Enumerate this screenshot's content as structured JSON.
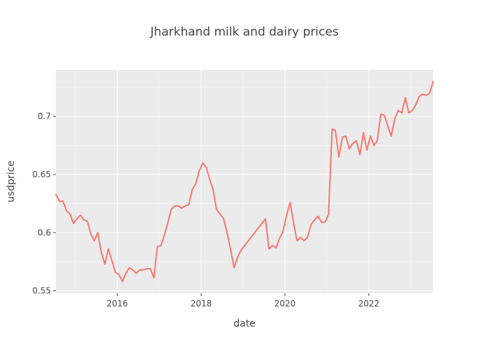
{
  "chart_data": {
    "type": "line",
    "title": "Jharkhand milk and dairy prices",
    "xlabel": "date",
    "ylabel": "usdprice",
    "xlim": [
      "2014-07-15",
      "2023-07-15"
    ],
    "ylim": [
      0.548,
      0.74
    ],
    "grid": true,
    "x_ticks": [
      "2016",
      "2018",
      "2020",
      "2022"
    ],
    "y_ticks": [
      0.55,
      0.6,
      0.65,
      0.7
    ],
    "y_tick_labels": [
      "0.55",
      "0.6",
      "0.65",
      "0.7"
    ],
    "series": [
      {
        "color": "#f8766d",
        "x": [
          "2014-07-15",
          "2014-08-15",
          "2014-09-15",
          "2014-10-15",
          "2014-11-15",
          "2014-12-15",
          "2015-01-15",
          "2015-02-15",
          "2015-03-15",
          "2015-04-15",
          "2015-05-15",
          "2015-06-15",
          "2015-07-15",
          "2015-08-15",
          "2015-09-15",
          "2015-10-15",
          "2015-11-15",
          "2015-12-15",
          "2016-01-15",
          "2016-02-15",
          "2016-03-15",
          "2016-04-15",
          "2016-05-15",
          "2016-06-15",
          "2016-07-15",
          "2016-08-15",
          "2016-09-15",
          "2016-10-15",
          "2016-11-15",
          "2016-12-15",
          "2017-01-15",
          "2017-02-15",
          "2017-03-15",
          "2017-04-15",
          "2017-05-15",
          "2017-06-15",
          "2017-07-15",
          "2017-08-15",
          "2017-09-15",
          "2017-10-15",
          "2017-11-15",
          "2017-12-15",
          "2018-01-15",
          "2018-02-15",
          "2018-03-15",
          "2018-04-15",
          "2018-05-15",
          "2018-06-15",
          "2018-07-15",
          "2018-08-15",
          "2018-09-15",
          "2018-10-15",
          "2018-11-15",
          "2018-12-15",
          "2019-07-15",
          "2019-08-15",
          "2019-09-15",
          "2019-10-15",
          "2019-11-15",
          "2019-12-15",
          "2020-01-15",
          "2020-02-15",
          "2020-03-15",
          "2020-04-15",
          "2020-05-15",
          "2020-06-15",
          "2020-07-15",
          "2020-08-15",
          "2020-09-15",
          "2020-10-15",
          "2020-11-15",
          "2020-12-15",
          "2021-01-15",
          "2021-02-15",
          "2021-03-15",
          "2021-04-15",
          "2021-05-15",
          "2021-06-15",
          "2021-07-15",
          "2021-08-15",
          "2021-09-15",
          "2021-10-15",
          "2021-11-15",
          "2021-12-15",
          "2022-01-15",
          "2022-02-15",
          "2022-03-15",
          "2022-04-15",
          "2022-05-15",
          "2022-07-15",
          "2022-08-15",
          "2022-09-15",
          "2022-10-15",
          "2022-11-15",
          "2022-12-15",
          "2023-01-15",
          "2023-02-15",
          "2023-03-15",
          "2023-04-15",
          "2023-05-15",
          "2023-06-15",
          "2023-07-15"
        ],
        "y": [
          0.633,
          0.627,
          0.627,
          0.619,
          0.616,
          0.608,
          0.612,
          0.615,
          0.611,
          0.61,
          0.599,
          0.593,
          0.6,
          0.583,
          0.573,
          0.586,
          0.576,
          0.566,
          0.564,
          0.558,
          0.565,
          0.57,
          0.568,
          0.565,
          0.568,
          0.568,
          0.569,
          0.569,
          0.561,
          0.588,
          0.589,
          0.598,
          0.608,
          0.62,
          0.623,
          0.623,
          0.621,
          0.623,
          0.624,
          0.637,
          0.642,
          0.653,
          0.66,
          0.656,
          0.646,
          0.637,
          0.62,
          0.616,
          0.612,
          0.6,
          0.585,
          0.57,
          0.579,
          0.585,
          0.612,
          0.586,
          0.589,
          0.587,
          0.595,
          0.601,
          0.615,
          0.626,
          0.609,
          0.593,
          0.596,
          0.593,
          0.596,
          0.607,
          0.611,
          0.614,
          0.609,
          0.609,
          0.616,
          0.689,
          0.688,
          0.665,
          0.682,
          0.683,
          0.672,
          0.677,
          0.679,
          0.667,
          0.686,
          0.671,
          0.683,
          0.675,
          0.679,
          0.702,
          0.701,
          0.683,
          0.698,
          0.705,
          0.703,
          0.716,
          0.703,
          0.705,
          0.71,
          0.717,
          0.719,
          0.718,
          0.72,
          0.73
        ]
      }
    ]
  }
}
